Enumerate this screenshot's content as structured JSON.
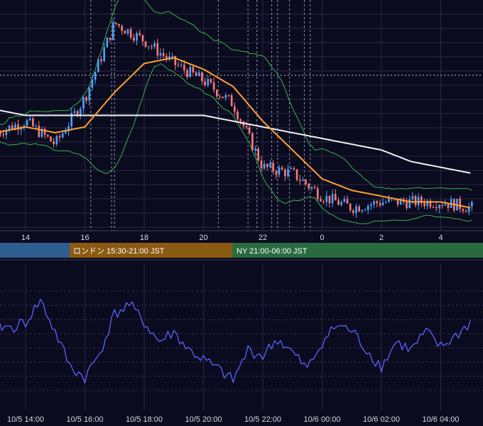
{
  "colors": {
    "background": "#0b0b1f",
    "grid": "#272a44",
    "grid_dash": "#2e3150",
    "session_lines": "#8a8fa8",
    "candle_up": "#4da3ff",
    "candle_down": "#ff7a7a",
    "ma_short": "#ffa030",
    "ma_long": "#f2f2f2",
    "bollinger": "#39b14a",
    "oscillator": "#5a63ff",
    "session_tokyo": "#2f5d8f",
    "session_london": "#8a5a12",
    "session_ny": "#2a6a40"
  },
  "sessions": [
    {
      "name": "tokyo",
      "label": ""
    },
    {
      "name": "london",
      "label": "ロンドン 15:30-21:00 JST"
    },
    {
      "name": "ny",
      "label": "NY 21:00-06:00 JST"
    }
  ],
  "chart_data": [
    {
      "type": "line",
      "panel": "price",
      "indicators": [
        "candlesticks",
        "moving-average-short",
        "moving-average-long",
        "bollinger-bands"
      ],
      "x_tick_labels": [
        "14",
        "16",
        "18",
        "20",
        "22",
        "0",
        "2",
        "4"
      ],
      "x_hours": [
        13.0,
        14.0,
        15.0,
        16.0,
        17.0,
        18.0,
        19.0,
        20.0,
        21.0,
        22.0,
        23.0,
        24.0,
        25.0,
        26.0,
        27.0,
        28.0,
        29.0
      ],
      "close": [
        17,
        19,
        15,
        23,
        36,
        33,
        29,
        26,
        22,
        11,
        10,
        6,
        4,
        5,
        5,
        5,
        4
      ],
      "ma_short": [
        17,
        18,
        17,
        18,
        24,
        29,
        30,
        28,
        25,
        19,
        14,
        9,
        7,
        6,
        5,
        5,
        4
      ],
      "ma_long": [
        21,
        20,
        20,
        20,
        20,
        20,
        20,
        20,
        19,
        18,
        17,
        16,
        15,
        14,
        12,
        11,
        10
      ],
      "ylim": [
        0,
        40
      ],
      "grid": true,
      "legend": "none"
    },
    {
      "type": "line",
      "panel": "oscillator",
      "x_tick_labels": [
        "10/5 14:00",
        "10/5 16:00",
        "10/5 18:00",
        "10/5 20:00",
        "10/5 22:00",
        "10/6 00:00",
        "10/6 02:00",
        "10/6 04:00"
      ],
      "x_hours": [
        13.0,
        13.5,
        14.0,
        14.5,
        15.0,
        15.5,
        16.0,
        16.5,
        17.0,
        17.5,
        18.0,
        18.5,
        19.0,
        19.5,
        20.0,
        20.5,
        21.0,
        21.5,
        22.0,
        22.5,
        23.0,
        23.5,
        24.0,
        24.5,
        25.0,
        25.5,
        26.0,
        26.5,
        27.0,
        27.5,
        28.0,
        28.5,
        29.0
      ],
      "values": [
        60,
        58,
        62,
        78,
        55,
        30,
        22,
        40,
        68,
        75,
        62,
        48,
        55,
        42,
        35,
        28,
        20,
        42,
        38,
        50,
        40,
        28,
        48,
        60,
        56,
        42,
        30,
        48,
        42,
        55,
        44,
        52,
        62
      ],
      "ylim": [
        0,
        100
      ],
      "grid": true,
      "legend": "none"
    }
  ]
}
